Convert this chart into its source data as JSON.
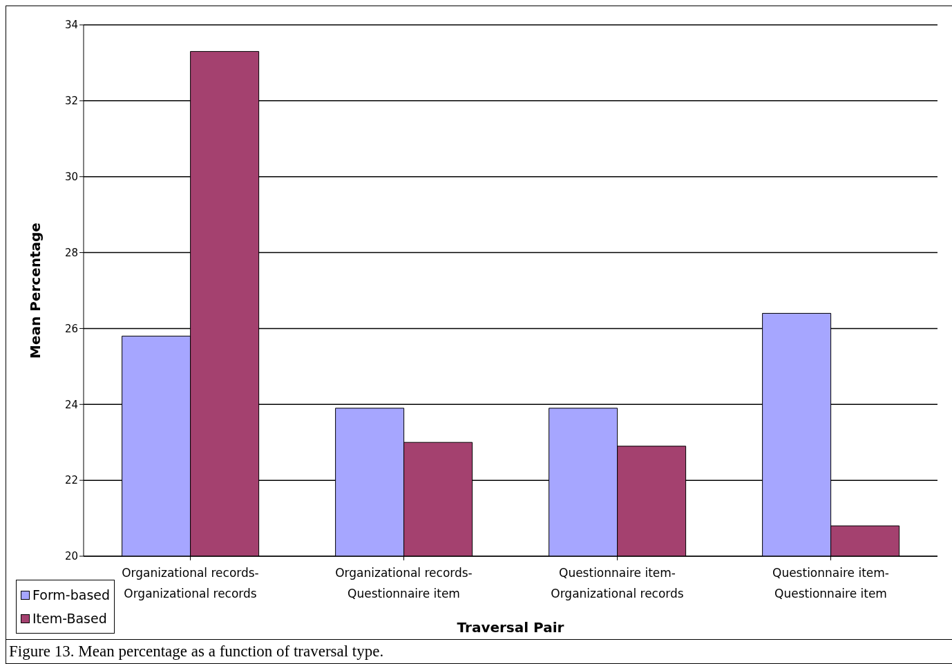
{
  "chart_data": {
    "type": "bar",
    "xlabel": "Traversal Pair",
    "ylabel": "Mean Percentage",
    "categories": [
      "Organizational records-Organizational records",
      "Organizational records-Questionnaire item",
      "Questionnaire item-Organizational records",
      "Questionnaire item-Questionnaire item"
    ],
    "series": [
      {
        "name": "Form-based",
        "color": "#a6a6ff",
        "values": [
          25.8,
          23.9,
          23.9,
          26.4
        ]
      },
      {
        "name": "Item-Based",
        "color": "#a4416f",
        "values": [
          33.3,
          23.0,
          22.9,
          20.8
        ]
      }
    ],
    "ylim": [
      20,
      34
    ],
    "yticks": [
      20,
      22,
      24,
      26,
      28,
      30,
      32,
      34
    ],
    "grid": "y",
    "legend": "bottom left",
    "annotations": [
      "Figure 13. Mean percentage as a function of traversal type."
    ]
  }
}
